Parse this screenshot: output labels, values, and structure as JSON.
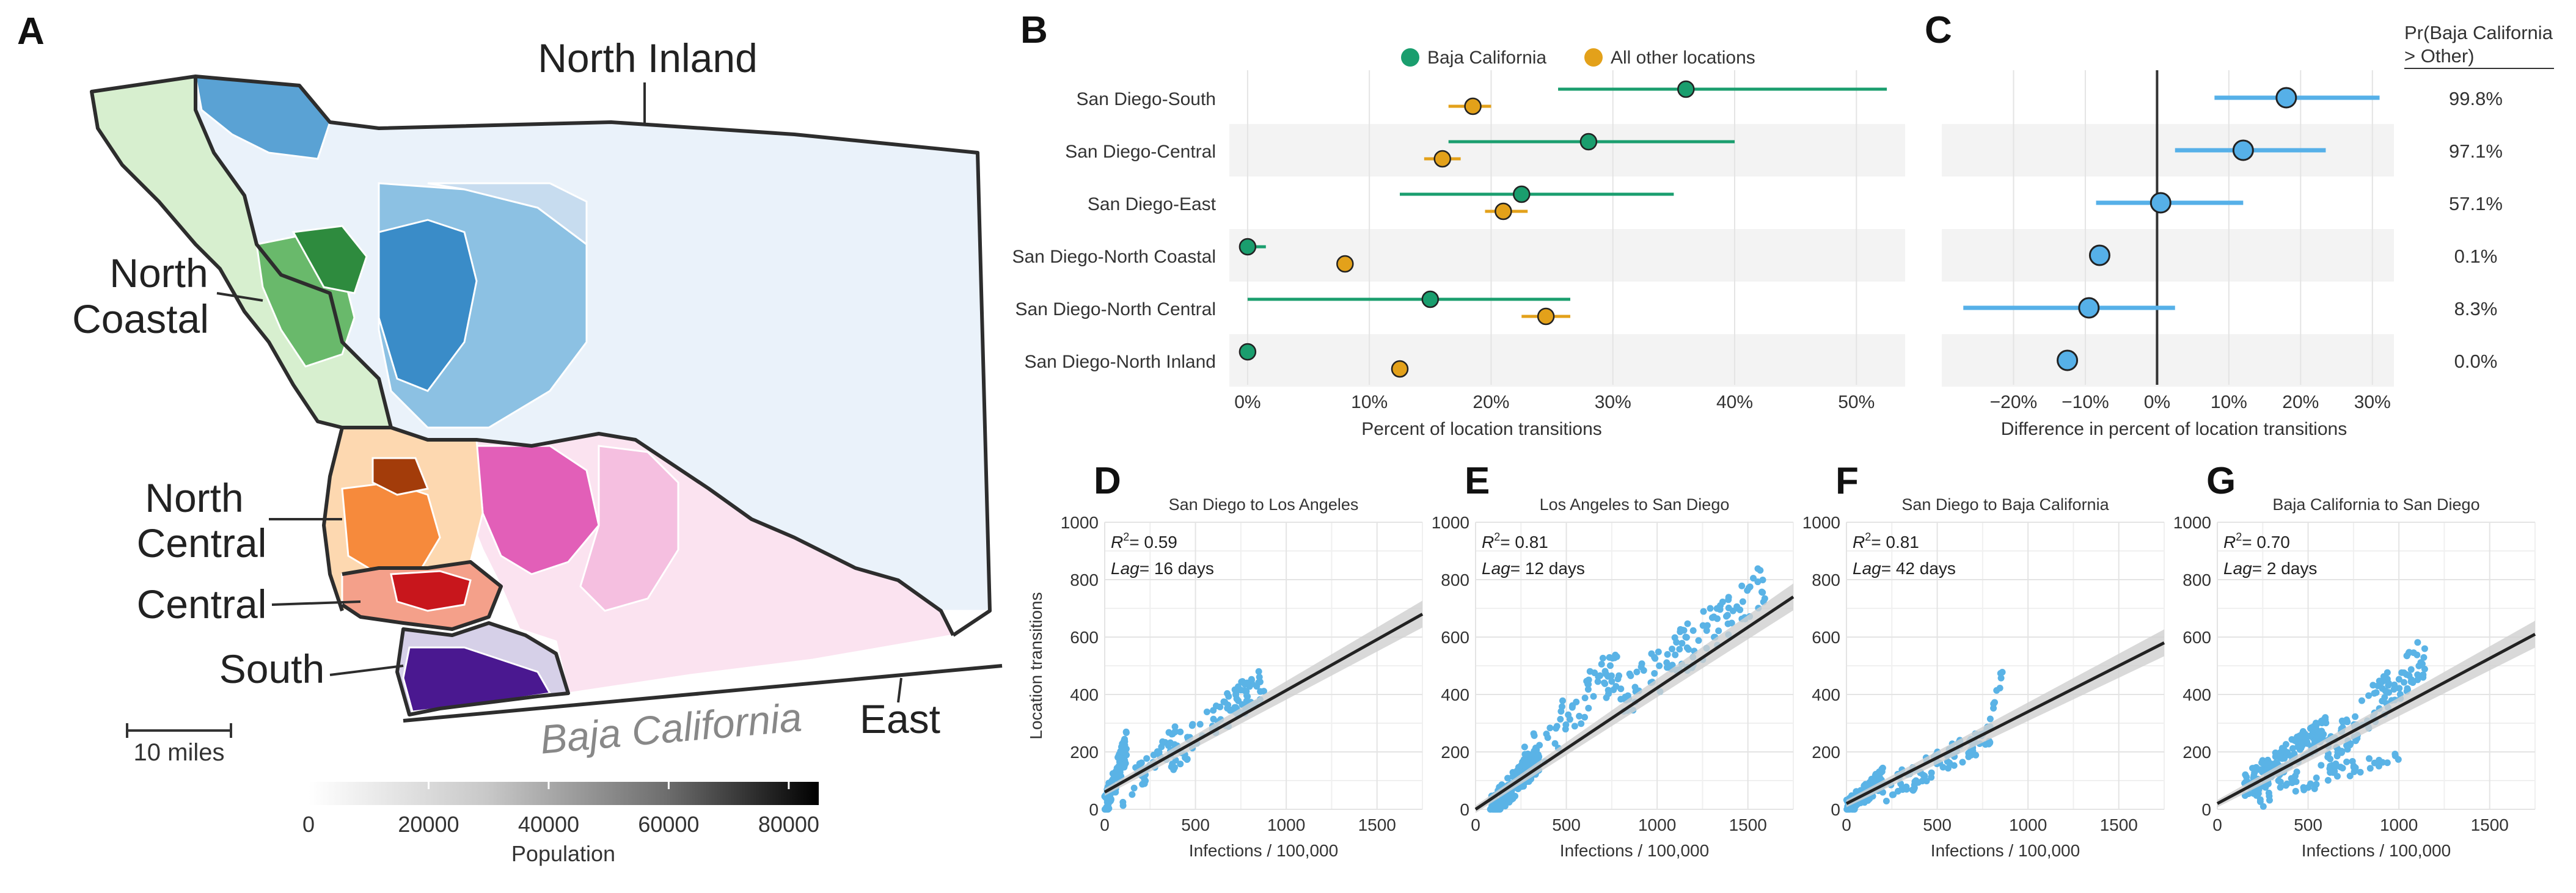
{
  "colors": {
    "baja": "#1a9e6e",
    "other": "#e3a11a",
    "diff": "#56b0e8",
    "points": "#5ab3e6",
    "band_even": "#f3f3f3",
    "grid": "#e4e4e4",
    "text": "#333333",
    "map_outline": "#2d2d2d"
  },
  "map": {
    "panel_letter": "A",
    "region_labels": {
      "north_inland": "North Inland",
      "north_coastal_1": "North",
      "north_coastal_2": "Coastal",
      "north_central_1": "North",
      "north_central_2": "Central",
      "central": "Central",
      "south": "South",
      "east": "East",
      "baja": "Baja California"
    },
    "scale_label": "10 miles",
    "colorbar": {
      "label": "Population",
      "ticks": [
        0,
        20000,
        40000,
        60000,
        80000
      ],
      "tick_labels": [
        "0",
        "20000",
        "40000",
        "60000",
        "80000"
      ],
      "range": [
        0,
        85000
      ]
    }
  },
  "chart_data": [
    {
      "panel": "B",
      "type": "scatter",
      "subtype": "dot-and-interval",
      "categories": [
        "San Diego-South",
        "San Diego-Central",
        "San Diego-East",
        "San Diego-North Coastal",
        "San Diego-North Central",
        "San Diego-North Inland"
      ],
      "series": [
        {
          "name": "Baja California",
          "values": [
            36,
            28,
            22.5,
            0,
            15,
            0
          ],
          "lower": [
            25.5,
            16.5,
            12.5,
            0,
            0,
            0
          ],
          "upper": [
            52.5,
            40,
            35,
            1.5,
            26.5,
            0
          ]
        },
        {
          "name": "All other locations",
          "values": [
            18.5,
            16,
            21,
            8,
            24.5,
            12.5
          ],
          "lower": [
            16.5,
            14.5,
            19.5,
            7.5,
            22.5,
            12
          ],
          "upper": [
            20,
            17.5,
            23,
            8.5,
            26.5,
            13
          ]
        }
      ],
      "xlabel": "Percent of location transitions",
      "xticks": [
        0,
        10,
        20,
        30,
        40,
        50
      ],
      "xtick_labels": [
        "0%",
        "10%",
        "20%",
        "30%",
        "40%",
        "50%"
      ],
      "xlim": [
        -1.5,
        54
      ],
      "legend": "top"
    },
    {
      "panel": "C",
      "type": "scatter",
      "subtype": "dot-and-interval",
      "categories": [
        "San Diego-South",
        "San Diego-Central",
        "San Diego-East",
        "San Diego-North Coastal",
        "San Diego-North Central",
        "San Diego-North Inland"
      ],
      "values": [
        18,
        12,
        0.5,
        -8,
        -9.5,
        -12.5
      ],
      "lower": [
        8,
        2.5,
        -8.5,
        -8,
        -27,
        -12.5
      ],
      "upper": [
        31,
        23.5,
        12,
        -8,
        2.5,
        -12.5
      ],
      "xlabel": "Difference in percent of location transitions",
      "xticks": [
        -20,
        -10,
        0,
        10,
        20,
        30
      ],
      "xtick_labels": [
        "−20%",
        "−10%",
        "0%",
        "10%",
        "20%",
        "30%"
      ],
      "xlim": [
        -30,
        33
      ],
      "prob_header_1": "Pr(Baja California",
      "prob_header_2": "> Other)",
      "prob_labels": [
        "99.8%",
        "97.1%",
        "57.1%",
        "0.1%",
        "8.3%",
        "0.0%"
      ]
    },
    {
      "panel": "D",
      "type": "scatter",
      "title": "San Diego to Los Angeles",
      "r2": "= 0.59",
      "lag": "= 16 days",
      "xlabel": "Infections / 100,000",
      "ylabel": "Location transitions",
      "xticks": [
        0,
        500,
        1000,
        1500
      ],
      "yticks": [
        0,
        200,
        400,
        600,
        800,
        1000
      ],
      "xlim": [
        0,
        1750
      ],
      "ylim": [
        0,
        1000
      ],
      "fit": {
        "x": [
          0,
          1750
        ],
        "y": [
          60,
          680
        ]
      },
      "clusters": [
        {
          "x": [
            0,
            120
          ],
          "y": [
            0,
            220
          ],
          "n": 120
        },
        {
          "x": [
            100,
            400
          ],
          "y": [
            60,
            250
          ],
          "n": 40
        },
        {
          "x": [
            350,
            880
          ],
          "y": [
            180,
            450
          ],
          "n": 90
        }
      ]
    },
    {
      "panel": "E",
      "type": "scatter",
      "title": "Los Angeles to San Diego",
      "r2": "= 0.81",
      "lag": "= 12 days",
      "xlabel": "Infections / 100,000",
      "ylabel": "",
      "xticks": [
        0,
        500,
        1000,
        1500
      ],
      "yticks": [
        0,
        200,
        400,
        600,
        800,
        1000
      ],
      "xlim": [
        0,
        1750
      ],
      "ylim": [
        0,
        1000
      ],
      "fit": {
        "x": [
          0,
          1750
        ],
        "y": [
          -20,
          740
        ]
      },
      "clusters": [
        {
          "x": [
            80,
            350
          ],
          "y": [
            0,
            180
          ],
          "n": 160
        },
        {
          "x": [
            250,
            800
          ],
          "y": [
            150,
            520
          ],
          "n": 80
        },
        {
          "x": [
            800,
            1600
          ],
          "y": [
            380,
            780
          ],
          "n": 110
        }
      ]
    },
    {
      "panel": "F",
      "type": "scatter",
      "title": "San Diego to Baja California",
      "r2": "= 0.81",
      "lag": "= 42 days",
      "xlabel": "Infections / 100,000",
      "ylabel": "",
      "xticks": [
        0,
        500,
        1000,
        1500
      ],
      "yticks": [
        0,
        200,
        400,
        600,
        800,
        1000
      ],
      "xlim": [
        0,
        1750
      ],
      "ylim": [
        0,
        1000
      ],
      "fit": {
        "x": [
          0,
          1750
        ],
        "y": [
          20,
          580
        ]
      },
      "clusters": [
        {
          "x": [
            0,
            200
          ],
          "y": [
            0,
            110
          ],
          "n": 130
        },
        {
          "x": [
            200,
            800
          ],
          "y": [
            60,
            250
          ],
          "n": 90
        },
        {
          "x": [
            780,
            860
          ],
          "y": [
            250,
            460
          ],
          "n": 12
        }
      ]
    },
    {
      "panel": "G",
      "type": "scatter",
      "title": "Baja California to San Diego",
      "r2": "= 0.70",
      "lag": "= 2 days",
      "xlabel": "Infections / 100,000",
      "ylabel": "",
      "xticks": [
        0,
        500,
        1000,
        1500
      ],
      "yticks": [
        0,
        200,
        400,
        600,
        800,
        1000
      ],
      "xlim": [
        0,
        1750
      ],
      "ylim": [
        0,
        1000
      ],
      "fit": {
        "x": [
          0,
          1750
        ],
        "y": [
          20,
          610
        ]
      },
      "clusters": [
        {
          "x": [
            150,
            600
          ],
          "y": [
            80,
            280
          ],
          "n": 150
        },
        {
          "x": [
            600,
            1150
          ],
          "y": [
            200,
            540
          ],
          "n": 110
        },
        {
          "x": [
            200,
            1000
          ],
          "y": [
            40,
            200
          ],
          "n": 60
        }
      ]
    }
  ]
}
